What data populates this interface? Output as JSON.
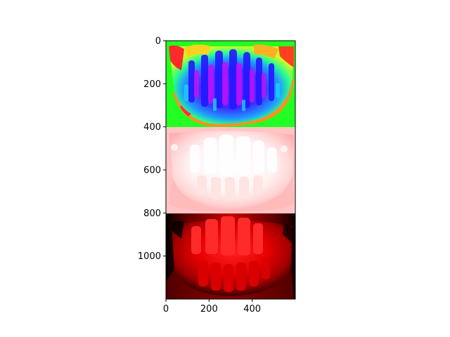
{
  "chart_data": {
    "type": "heatmap",
    "title": "",
    "xlabel": "",
    "ylabel": "",
    "xlim": [
      0,
      600
    ],
    "ylim": [
      1200,
      0
    ],
    "grid": false,
    "x_ticks": [
      {
        "value": 0,
        "label": "0"
      },
      {
        "value": 200,
        "label": "200"
      },
      {
        "value": 400,
        "label": "400"
      }
    ],
    "y_ticks": [
      {
        "value": 0,
        "label": "0"
      },
      {
        "value": 200,
        "label": "200"
      },
      {
        "value": 400,
        "label": "400"
      },
      {
        "value": 600,
        "label": "600"
      },
      {
        "value": 800,
        "label": "800"
      },
      {
        "value": 1000,
        "label": "1000"
      }
    ],
    "panels": [
      {
        "y_start": 0,
        "y_end": 400,
        "description": "hsv colormap rendering of lower dental arch",
        "colormap": "hsv"
      },
      {
        "y_start": 400,
        "y_end": 800,
        "description": "white-pink rendering of lower dental arch",
        "colormap": "reds_reversed"
      },
      {
        "y_start": 800,
        "y_end": 1200,
        "description": "red-channel rendering of lower dental arch",
        "colormap": "red_channel"
      }
    ]
  }
}
